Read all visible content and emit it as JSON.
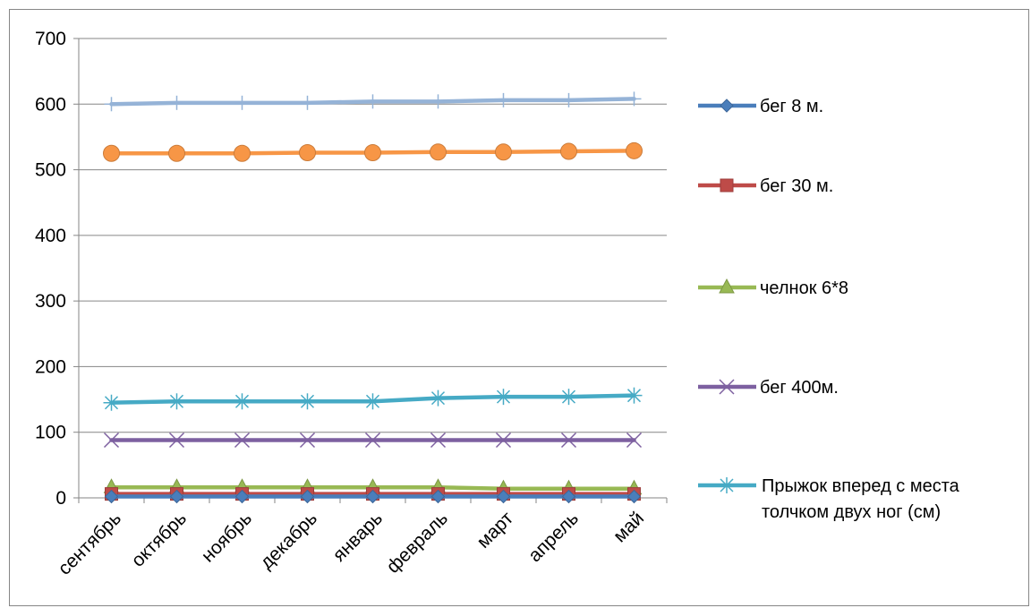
{
  "chart_data": {
    "type": "line",
    "categories": [
      "сентябрь",
      "октябрь",
      "ноябрь",
      "декабрь",
      "январь",
      "февраль",
      "март",
      "апрель",
      "май"
    ],
    "ylim": [
      0,
      700
    ],
    "yticks": [
      0,
      100,
      200,
      300,
      400,
      500,
      600,
      700
    ],
    "grid": true,
    "legend_position": "right",
    "series": [
      {
        "name": "бег 8 м.",
        "color": "#4a7ebb",
        "marker": "diamond",
        "values": [
          2,
          2,
          2,
          2,
          2,
          2,
          2,
          2,
          2
        ]
      },
      {
        "name": "бег 30 м.",
        "color": "#be4b48",
        "marker": "square",
        "values": [
          6,
          6,
          6,
          6,
          6,
          6,
          6,
          6,
          6
        ]
      },
      {
        "name": "челнок 6*8",
        "color": "#98b954",
        "marker": "triangle",
        "values": [
          16,
          16,
          16,
          16,
          16,
          16,
          14,
          14,
          14
        ]
      },
      {
        "name": "бег 400м.",
        "color": "#7d60a0",
        "marker": "x",
        "values": [
          88,
          88,
          88,
          88,
          88,
          88,
          88,
          88,
          88
        ]
      },
      {
        "name": "Прыжок вперед с места толчком двух ног (см)",
        "color": "#46aac5",
        "marker": "star",
        "values": [
          145,
          147,
          147,
          147,
          147,
          152,
          154,
          154,
          156
        ]
      },
      {
        "name": "",
        "color": "#f79646",
        "marker": "circle",
        "in_legend": false,
        "values": [
          525,
          525,
          525,
          526,
          526,
          527,
          527,
          528,
          529
        ]
      },
      {
        "name": "",
        "color": "#95b3d7",
        "marker": "plus",
        "in_legend": false,
        "values": [
          600,
          602,
          602,
          602,
          604,
          604,
          606,
          606,
          608
        ]
      }
    ],
    "legend": [
      {
        "series": 0,
        "label": "бег 8 м."
      },
      {
        "series": 1,
        "label": "бег 30 м."
      },
      {
        "series": 2,
        "label": "челнок 6*8"
      },
      {
        "series": 3,
        "label": "бег 400м."
      },
      {
        "series": 4,
        "label_lines": [
          "Прыжок вперед с места",
          "толчком двух ног (см)"
        ]
      }
    ]
  }
}
